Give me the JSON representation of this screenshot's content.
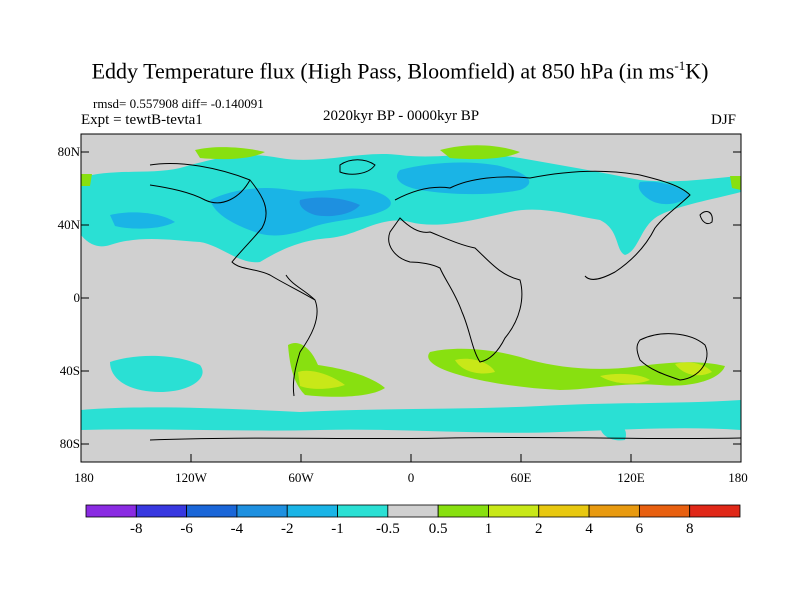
{
  "title": "Eddy Temperature flux (High Pass, Bloomfield) at 850 hPa (in ms",
  "title_sup": "-1",
  "title_end": "K)",
  "stats": "rmsd= 0.557908 diff= -0.140091",
  "experiment": "Expt = tewtB-tevta1",
  "subtitle": "2020kyr BP - 0000kyr BP",
  "season": "DJF",
  "lat_labels": [
    "80N",
    "40N",
    "0",
    "40S",
    "80S"
  ],
  "lon_labels": [
    "180",
    "120W",
    "60W",
    "0",
    "60E",
    "120E",
    "180"
  ],
  "colorbar": {
    "labels": [
      "-8",
      "-6",
      "-4",
      "-2",
      "-1",
      "-0.5",
      "0.5",
      "1",
      "2",
      "4",
      "6",
      "8"
    ],
    "colors": [
      "#8a2be2",
      "#3838e0",
      "#1a66d8",
      "#1e90e0",
      "#1ab4e6",
      "#2ae0d4",
      "#d0d0d0",
      "#88e010",
      "#c8e818",
      "#e8c810",
      "#e89a10",
      "#e86010",
      "#e02818"
    ]
  },
  "colors": {
    "land_background": "#d0d0d0",
    "coastline": "#000000"
  }
}
